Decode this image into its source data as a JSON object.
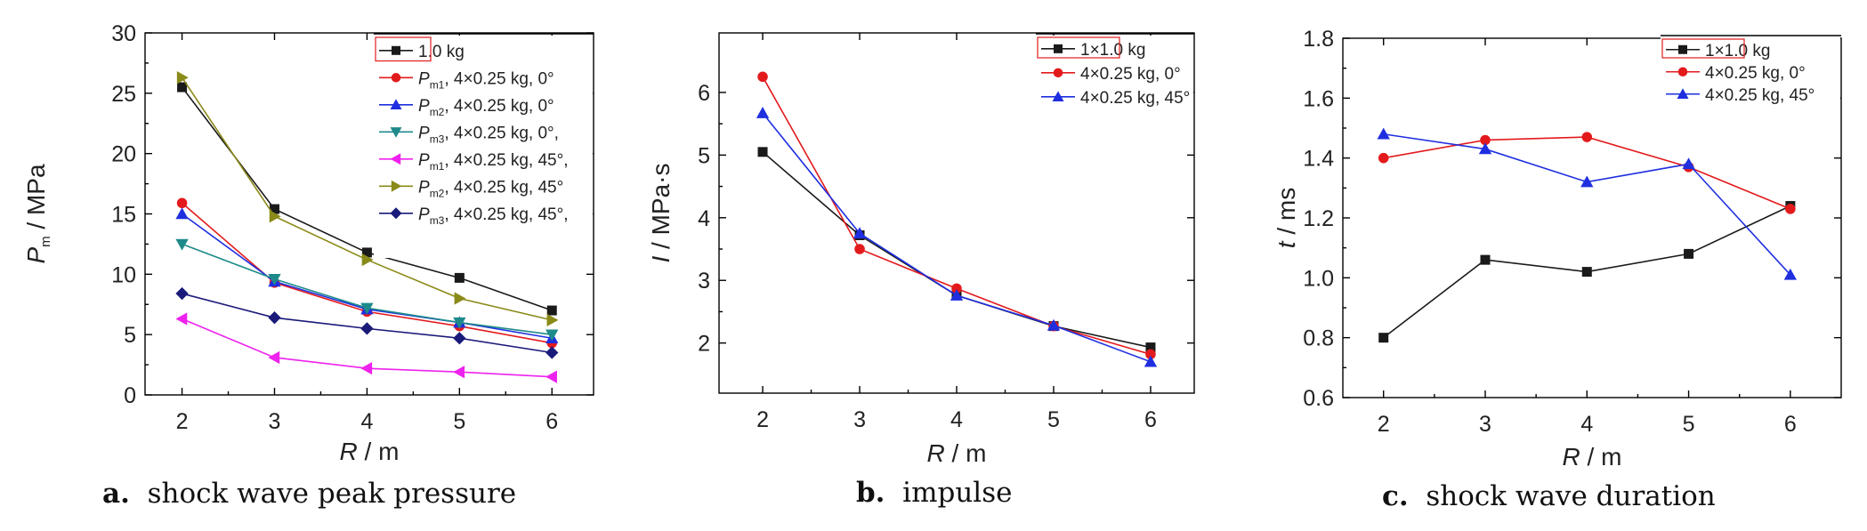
{
  "chart_data": [
    {
      "type": "line",
      "caption": {
        "letter": "a",
        "text": "shock wave peak pressure"
      },
      "xlabel": {
        "main": "R",
        "rest": " / m"
      },
      "ylabel": {
        "main": "P",
        "sub": "m",
        "rest": " / MPa"
      },
      "xlim": [
        1.6,
        6.45
      ],
      "ylim": [
        0,
        30
      ],
      "xticks": [
        2,
        3,
        4,
        5,
        6
      ],
      "xtick_labels": [
        "2",
        "3",
        "4",
        "5",
        "6"
      ],
      "yticks": [
        0,
        5,
        10,
        15,
        20,
        25,
        30
      ],
      "ytick_labels": [
        "0",
        "5",
        "10",
        "15",
        "20",
        "25",
        "30"
      ],
      "x": [
        2,
        3,
        4,
        5,
        6
      ],
      "legend_position": "top-right",
      "series": [
        {
          "name": "1.0 kg",
          "label_main": "",
          "label_sub": "",
          "label_rest": "1.0 kg",
          "color": "#1a1a1a",
          "marker": "square",
          "values": [
            25.5,
            15.4,
            11.8,
            9.7,
            7.0
          ]
        },
        {
          "name": "Pm1, 4×0.25 kg, 0°",
          "label_main": "P",
          "label_sub": "m1",
          "label_rest": ", 4×0.25 kg, 0°",
          "color": "#e31a1c",
          "marker": "circle",
          "values": [
            15.9,
            9.3,
            6.9,
            5.7,
            4.3
          ]
        },
        {
          "name": "Pm2, 4×0.25 kg, 0°",
          "label_main": "P",
          "label_sub": "m2",
          "label_rest": ", 4×0.25 kg, 0°",
          "color": "#1f2fe0",
          "marker": "triangle-up",
          "values": [
            15.0,
            9.4,
            7.1,
            6.0,
            4.7
          ]
        },
        {
          "name": "Pm3, 4×0.25 kg, 0°,",
          "label_main": "P",
          "label_sub": "m3",
          "label_rest": ", 4×0.25 kg, 0°,",
          "color": "#1e8a8a",
          "marker": "triangle-down",
          "values": [
            12.5,
            9.6,
            7.2,
            6.0,
            5.0
          ]
        },
        {
          "name": "Pm1, 4×0.25 kg, 45°,",
          "label_main": "P",
          "label_sub": "m1",
          "label_rest": ", 4×0.25 kg, 45°,",
          "color": "#ee22ee",
          "marker": "triangle-left",
          "values": [
            6.3,
            3.1,
            2.2,
            1.9,
            1.5
          ]
        },
        {
          "name": "Pm2, 4×0.25 kg, 45°",
          "label_main": "P",
          "label_sub": "m2",
          "label_rest": ", 4×0.25 kg, 45°",
          "color": "#8a8a18",
          "marker": "triangle-right",
          "values": [
            26.3,
            14.8,
            11.2,
            8.0,
            6.2
          ]
        },
        {
          "name": "Pm3, 4×0.25 kg, 45°,",
          "label_main": "P",
          "label_sub": "m3",
          "label_rest": ", 4×0.25 kg, 45°,",
          "color": "#1a1a7a",
          "marker": "diamond",
          "values": [
            8.4,
            6.4,
            5.5,
            4.7,
            3.5
          ]
        }
      ]
    },
    {
      "type": "line",
      "caption": {
        "letter": "b",
        "text": "impulse"
      },
      "xlabel": {
        "main": "R",
        "rest": " / m"
      },
      "ylabel": {
        "main": "I",
        "sub": "",
        "rest": " / MPa·s"
      },
      "xlim": [
        1.55,
        6.45
      ],
      "ylim": [
        1.2,
        6.95
      ],
      "xticks": [
        2,
        3,
        4,
        5,
        6
      ],
      "xtick_labels": [
        "2",
        "3",
        "4",
        "5",
        "6"
      ],
      "yticks": [
        2,
        3,
        4,
        5,
        6
      ],
      "ytick_labels": [
        "2",
        "3",
        "4",
        "5",
        "6"
      ],
      "x": [
        2,
        3,
        4,
        5,
        6
      ],
      "legend_position": "top-right",
      "series": [
        {
          "name": "1×1.0 kg",
          "label_main": "",
          "label_sub": "",
          "label_rest": "1×1.0 kg",
          "color": "#1a1a1a",
          "marker": "square",
          "values": [
            5.05,
            3.72,
            2.76,
            2.27,
            1.93
          ]
        },
        {
          "name": "4×0.25 kg, 0°",
          "label_main": "",
          "label_sub": "",
          "label_rest": "4×0.25 kg, 0°",
          "color": "#e31a1c",
          "marker": "circle",
          "values": [
            6.25,
            3.5,
            2.87,
            2.27,
            1.82
          ]
        },
        {
          "name": "4×0.25 kg, 45°",
          "label_main": "",
          "label_sub": "",
          "label_rest": "4×0.25 kg, 45°",
          "color": "#1f2fe0",
          "marker": "triangle-up",
          "values": [
            5.67,
            3.75,
            2.76,
            2.28,
            1.7
          ]
        }
      ]
    },
    {
      "type": "line",
      "caption": {
        "letter": "c",
        "text": "shock wave duration"
      },
      "xlabel": {
        "main": "R",
        "rest": " / m"
      },
      "ylabel": {
        "main": "t",
        "sub": "",
        "rest": " / ms"
      },
      "xlim": [
        1.6,
        6.5
      ],
      "ylim": [
        0.6,
        1.8
      ],
      "xticks": [
        2,
        3,
        4,
        5,
        6
      ],
      "xtick_labels": [
        "2",
        "3",
        "4",
        "5",
        "6"
      ],
      "yticks": [
        0.6,
        0.8,
        1.0,
        1.2,
        1.4,
        1.6,
        1.8
      ],
      "ytick_labels": [
        "0.6",
        "0.8",
        "1.0",
        "1.2",
        "1.4",
        "1.6",
        "1.8"
      ],
      "x": [
        2,
        3,
        4,
        5,
        6
      ],
      "legend_position": "top-right",
      "series": [
        {
          "name": "1×1.0 kg",
          "label_main": "",
          "label_sub": "",
          "label_rest": "1×1.0 kg",
          "color": "#1a1a1a",
          "marker": "square",
          "values": [
            0.8,
            1.06,
            1.02,
            1.08,
            1.24
          ]
        },
        {
          "name": "4×0.25 kg, 0°",
          "label_main": "",
          "label_sub": "",
          "label_rest": "4×0.25 kg, 0°",
          "color": "#e31a1c",
          "marker": "circle",
          "values": [
            1.4,
            1.46,
            1.47,
            1.37,
            1.23
          ]
        },
        {
          "name": "4×0.25 kg, 45°",
          "label_main": "",
          "label_sub": "",
          "label_rest": "4×0.25 kg, 45°",
          "color": "#1f2fe0",
          "marker": "triangle-up",
          "values": [
            1.48,
            1.43,
            1.32,
            1.38,
            1.01
          ]
        }
      ]
    }
  ]
}
